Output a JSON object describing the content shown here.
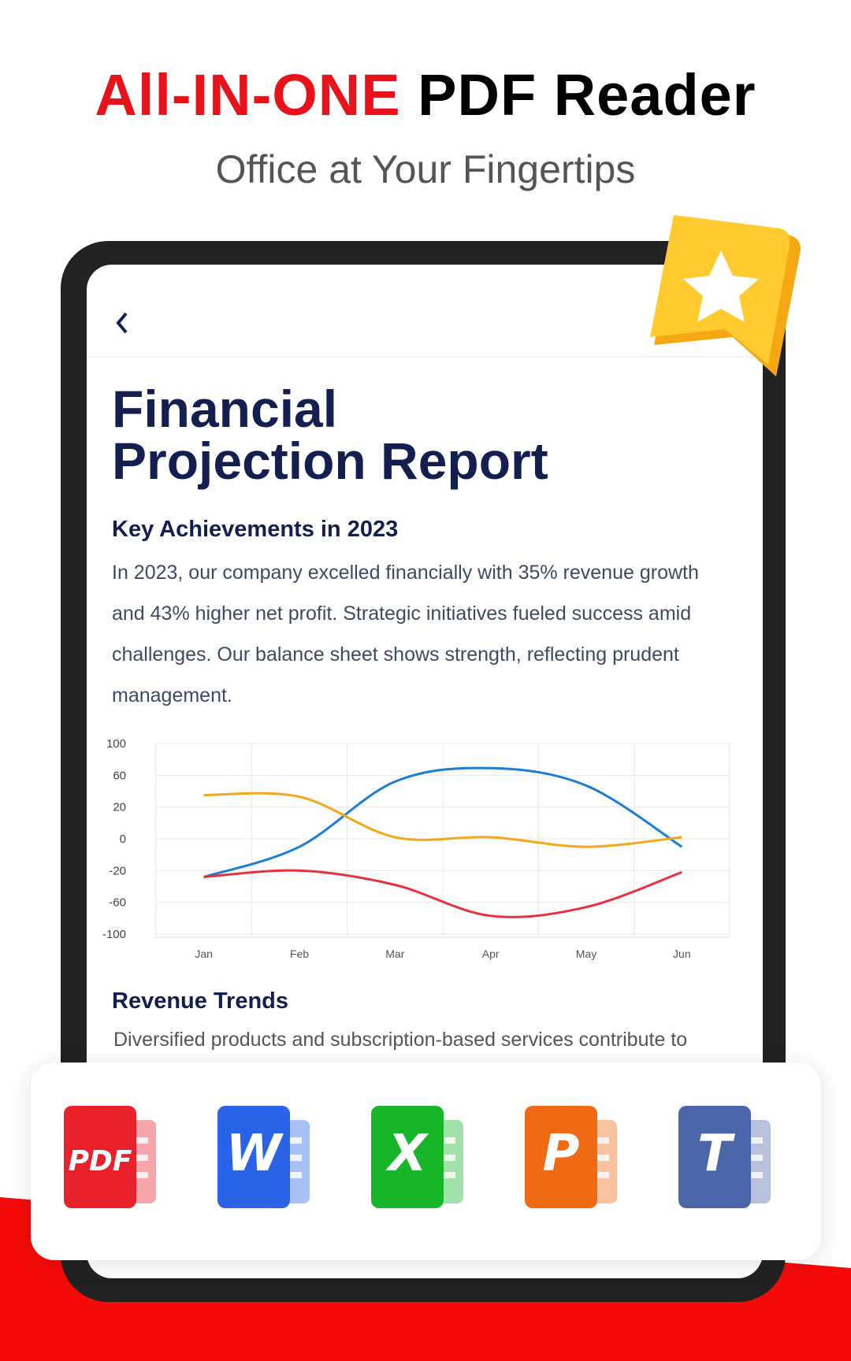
{
  "header": {
    "title_highlight": "All-IN-ONE",
    "title_rest": "PDF Reader",
    "subtitle": "Office at Your Fingertips"
  },
  "document": {
    "title_line1": "Financial",
    "title_line2": "Projection Report",
    "section1": {
      "heading": "Key Achievements in 2023",
      "text": "In 2023, our company excelled financially with 35% revenue growth and 43% higher net profit. Strategic initiatives fueled success amid challenges. Our balance sheet shows strength, reflecting prudent management."
    },
    "section2": {
      "heading": "Revenue Trends",
      "text": "Diversified products and subscription-based services contribute to"
    }
  },
  "chart_data": {
    "type": "line",
    "categories": [
      "Jan",
      "Feb",
      "Mar",
      "Apr",
      "May",
      "Jun"
    ],
    "series": [
      {
        "color": "#1a7fd4",
        "values": [
          -28,
          -5,
          52,
          69,
          47,
          -5
        ]
      },
      {
        "color": "#f2a81d",
        "values": [
          35,
          33,
          1,
          1,
          -5,
          1
        ]
      },
      {
        "color": "#e5323e",
        "values": [
          -28,
          -20,
          -38,
          -77,
          -66,
          -22
        ]
      }
    ],
    "ylim": [
      -100,
      100
    ],
    "yticks": [
      100,
      60,
      20,
      0,
      -20,
      -60,
      -100
    ],
    "grid": true
  },
  "formats": [
    {
      "label": "PDF",
      "color": "#e8212b"
    },
    {
      "label": "W",
      "color": "#2a63e8"
    },
    {
      "label": "X",
      "color": "#18b52a"
    },
    {
      "label": "P",
      "color": "#f06a14"
    },
    {
      "label": "T",
      "color": "#4a65a8"
    }
  ]
}
